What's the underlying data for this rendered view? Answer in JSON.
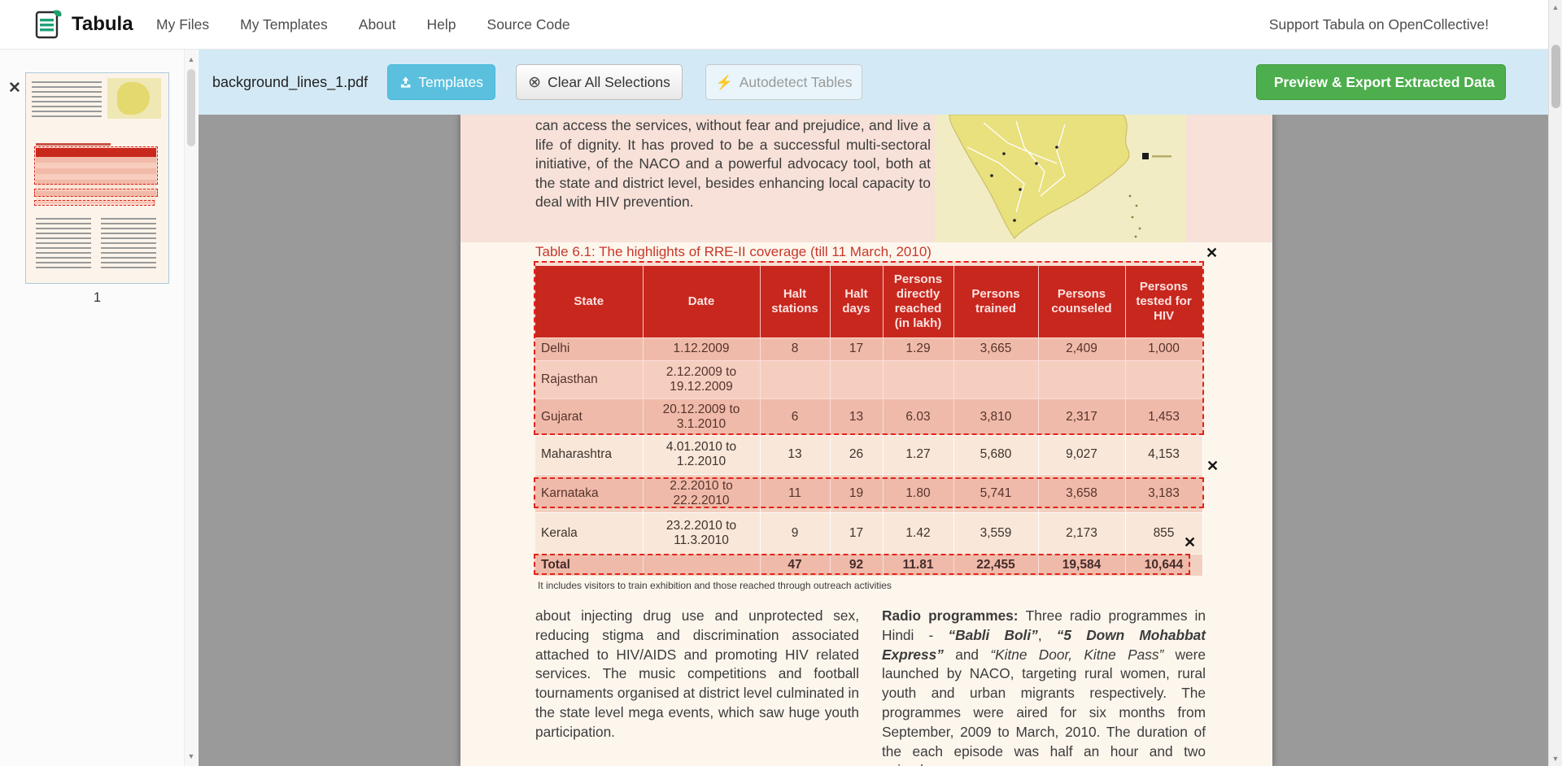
{
  "navbar": {
    "brand": "Tabula",
    "items": [
      "My Files",
      "My Templates",
      "About",
      "Help",
      "Source Code"
    ],
    "support_link": "Support Tabula on OpenCollective!"
  },
  "toolbar": {
    "filename": "background_lines_1.pdf",
    "templates_label": "Templates",
    "clear_label": "Clear All Selections",
    "autodetect_label": "Autodetect Tables",
    "export_label": "Preview & Export Extracted Data"
  },
  "sidebar": {
    "page_number": "1"
  },
  "glyphs": {
    "close": "✕",
    "circled_x": "⊗",
    "lightning": "⚡",
    "scroll_up": "▲",
    "scroll_down": "▼"
  },
  "pdf": {
    "intro": "can access the services, without fear and prejudice, and live a life of dignity. It has proved to be a successful multi-sectoral initiative, of the NACO and a powerful advocacy tool, both at the state and district level, besides enhancing local capacity to deal with HIV prevention.",
    "table_title": "Table 6.1: The highlights of RRE-II coverage (till 11 March, 2010)",
    "table": {
      "headers": [
        "State",
        "Date",
        "Halt stations",
        "Halt days",
        "Persons directly reached (in lakh)",
        "Persons trained",
        "Persons counseled",
        "Persons tested for HIV"
      ],
      "rows": [
        [
          "Delhi",
          "1.12.2009",
          "8",
          "17",
          "1.29",
          "3,665",
          "2,409",
          "1,000"
        ],
        [
          "Rajasthan",
          "2.12.2009 to 19.12.2009",
          "",
          "",
          "",
          "",
          "",
          ""
        ],
        [
          "Gujarat",
          "20.12.2009 to 3.1.2010",
          "6",
          "13",
          "6.03",
          "3,810",
          "2,317",
          "1,453"
        ],
        [
          "Maharashtra",
          "4.01.2010 to 1.2.2010",
          "13",
          "26",
          "1.27",
          "5,680",
          "9,027",
          "4,153"
        ],
        [
          "Karnataka",
          "2.2.2010 to 22.2.2010",
          "11",
          "19",
          "1.80",
          "5,741",
          "3,658",
          "3,183"
        ],
        [
          "Kerala",
          "23.2.2010 to 11.3.2010",
          "9",
          "17",
          "1.42",
          "3,559",
          "2,173",
          "855"
        ],
        [
          "Total",
          "",
          "47",
          "92",
          "11.81",
          "22,455",
          "19,584",
          "10,644"
        ]
      ]
    },
    "footnote": "It includes visitors to train exhibition and those reached through outreach activities",
    "left_column": "about injecting drug use and unprotected sex, reducing stigma and discrimination associated attached to HIV/AIDS and promoting HIV related services. The music competitions and football tournaments organised at district level culminated in the state level mega events, which saw huge youth participation.",
    "right_column": {
      "seg1": "Radio programmes: ",
      "seg2": "Three radio programmes in Hindi - ",
      "seg3": "“Babli Boli”",
      "seg4": ", ",
      "seg5": "“5 Down Mohabbat Express”",
      "seg6": " and ",
      "seg7": "“Kitne Door, Kitne Pass”",
      "seg8": " were launched by NACO, targeting rural women, rural youth and urban migrants respectively. The programmes were aired for six months from September, 2009 to March, 2010. The duration of the each episode was half an hour and two episodes"
    }
  },
  "colors": {
    "toolbar_blue": "#d3eaf6",
    "templates_teal": "#5bc0de",
    "export_green": "#4cae4c",
    "table_header_red": "#c3251c",
    "selection_red": "#e0241b",
    "viewer_gray": "#9a9a9a"
  }
}
